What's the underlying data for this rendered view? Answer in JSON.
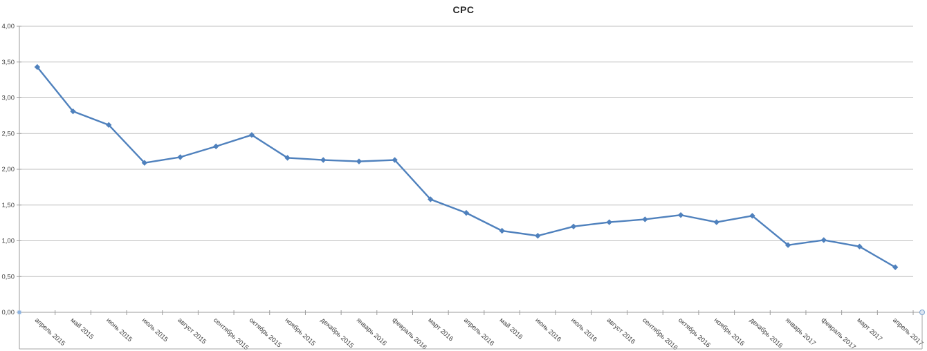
{
  "chart_data": {
    "type": "line",
    "title": "CPC",
    "xlabel": "",
    "ylabel": "",
    "ylim": [
      0,
      4
    ],
    "grid": true,
    "legend_position": "none",
    "yticks": [
      0,
      0.5,
      1,
      1.5,
      2,
      2.5,
      3,
      3.5,
      4
    ],
    "ytick_labels": [
      "0,00",
      "0,50",
      "1,00",
      "1,50",
      "2,00",
      "2,50",
      "3,00",
      "3,50",
      "4,00"
    ],
    "categories": [
      "апрель 2015",
      "май 2015",
      "июнь 2015",
      "июль 2015",
      "август 2015",
      "сентябрь 2015",
      "октябрь 2015",
      "ноябрь 2015",
      "декабрь 2015",
      "январь 2016",
      "февраль 2016",
      "март 2016",
      "апрель 2016",
      "май 2016",
      "июнь 2016",
      "июль 2016",
      "август 2016",
      "сентябрь 2016",
      "октябрь 2016",
      "ноябрь 2016",
      "декабрь 2016",
      "январь 2017",
      "февраль 2017",
      "март 2017",
      "апрель 2017"
    ],
    "series": [
      {
        "name": "CPC",
        "marker": "diamond",
        "values": [
          3.43,
          2.81,
          2.62,
          2.09,
          2.17,
          2.32,
          2.48,
          2.16,
          2.13,
          2.11,
          2.13,
          1.58,
          1.39,
          1.14,
          1.07,
          1.2,
          1.26,
          1.3,
          1.36,
          1.26,
          1.35,
          0.94,
          1.01,
          0.92,
          0.63
        ]
      }
    ],
    "colors": {
      "line": "#4F81BD",
      "marker": "#4F81BD",
      "gridline": "#BFBFBF",
      "axis": "#9B9B9B",
      "tick_text": "#404040",
      "title_text": "#262626",
      "frame": "#A6A6A6",
      "handle_fill": "#DCE6F1",
      "handle_stroke": "#7BA0CD",
      "handle_dot": "#8DB4E2"
    }
  }
}
